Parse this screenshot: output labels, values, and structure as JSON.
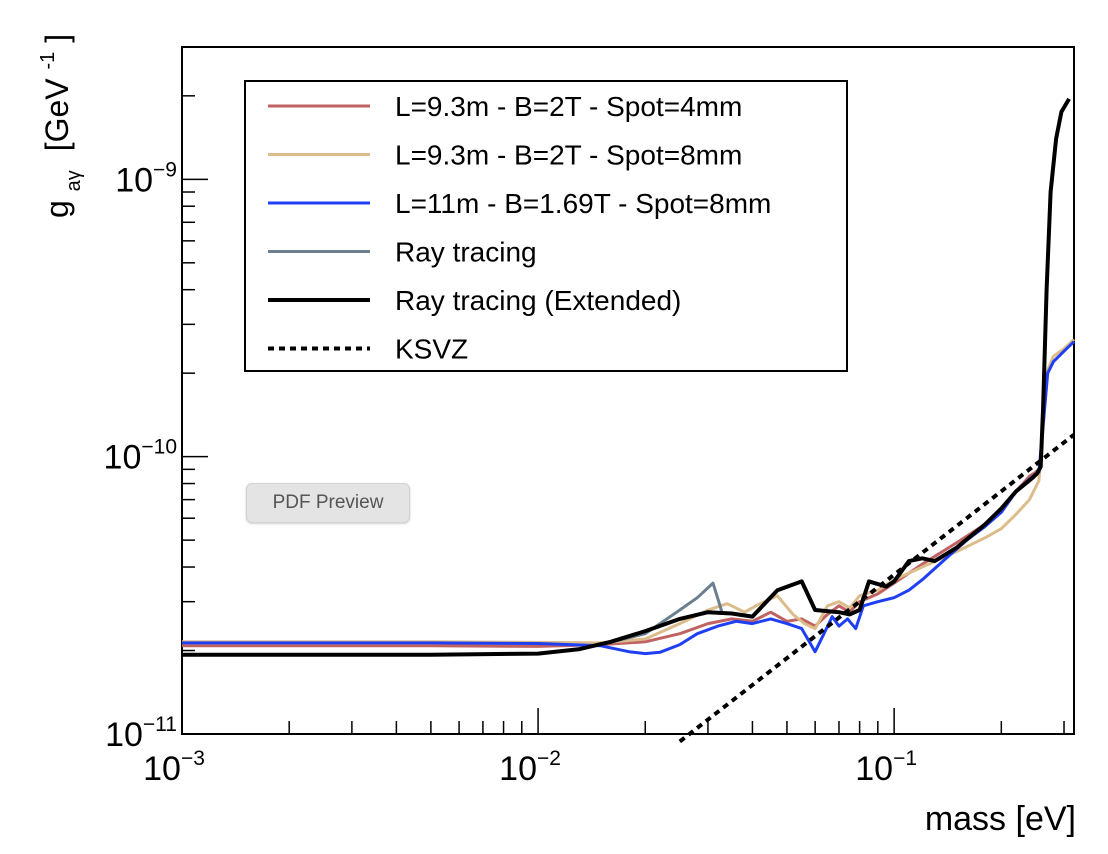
{
  "chart_data": {
    "type": "line",
    "xscale": "log",
    "yscale": "log",
    "xlabel": "mass [eV]",
    "ylabel": {
      "main": "g",
      "sub": "aγ",
      "unit_open": "[GeV",
      "unit_sup": "-1",
      "unit_close": "]"
    },
    "xlim": [
      0.001,
      0.32
    ],
    "ylim": [
      1e-11,
      3e-09
    ],
    "x_ticks": [
      {
        "value": 0.001,
        "base": "10",
        "exp": "−3"
      },
      {
        "value": 0.01,
        "base": "10",
        "exp": "−2"
      },
      {
        "value": 0.1,
        "base": "10",
        "exp": "−1"
      }
    ],
    "y_ticks": [
      {
        "value": 1e-11,
        "base": "10",
        "exp": "−11"
      },
      {
        "value": 1e-10,
        "base": "10",
        "exp": "−10"
      },
      {
        "value": 1e-09,
        "base": "10",
        "exp": "−9"
      }
    ],
    "legend_position": "top-left",
    "series": [
      {
        "name": "L=9.3m - B=2T - Spot=4mm",
        "color": "#c06262",
        "width": 3,
        "dash": "",
        "points": [
          [
            0.001,
            2.08e-11
          ],
          [
            0.005,
            2.08e-11
          ],
          [
            0.01,
            2.07e-11
          ],
          [
            0.015,
            2.1e-11
          ],
          [
            0.02,
            2.15e-11
          ],
          [
            0.025,
            2.3e-11
          ],
          [
            0.03,
            2.5e-11
          ],
          [
            0.035,
            2.6e-11
          ],
          [
            0.04,
            2.55e-11
          ],
          [
            0.045,
            2.75e-11
          ],
          [
            0.05,
            2.55e-11
          ],
          [
            0.055,
            2.6e-11
          ],
          [
            0.06,
            2.45e-11
          ],
          [
            0.065,
            2.7e-11
          ],
          [
            0.07,
            2.9e-11
          ],
          [
            0.075,
            2.75e-11
          ],
          [
            0.08,
            3e-11
          ],
          [
            0.09,
            3.2e-11
          ],
          [
            0.1,
            3.5e-11
          ],
          [
            0.12,
            4.1e-11
          ],
          [
            0.15,
            4.9e-11
          ],
          [
            0.18,
            5.7e-11
          ],
          [
            0.2,
            6.3e-11
          ],
          [
            0.22,
            7.5e-11
          ],
          [
            0.24,
            8.5e-11
          ],
          [
            0.25,
            8.8e-11
          ],
          [
            0.255,
            9e-11
          ]
        ]
      },
      {
        "name": "L=9.3m - B=2T - Spot=8mm",
        "color": "#dcbc8a",
        "width": 3,
        "dash": "",
        "points": [
          [
            0.001,
            2.15e-11
          ],
          [
            0.005,
            2.15e-11
          ],
          [
            0.01,
            2.14e-11
          ],
          [
            0.015,
            2.13e-11
          ],
          [
            0.02,
            2.2e-11
          ],
          [
            0.025,
            2.5e-11
          ],
          [
            0.03,
            2.8e-11
          ],
          [
            0.034,
            2.95e-11
          ],
          [
            0.038,
            2.75e-11
          ],
          [
            0.042,
            2.95e-11
          ],
          [
            0.047,
            3.15e-11
          ],
          [
            0.052,
            2.7e-11
          ],
          [
            0.056,
            2.5e-11
          ],
          [
            0.06,
            2.4e-11
          ],
          [
            0.065,
            2.9e-11
          ],
          [
            0.07,
            3e-11
          ],
          [
            0.075,
            2.85e-11
          ],
          [
            0.08,
            3.15e-11
          ],
          [
            0.09,
            3.3e-11
          ],
          [
            0.1,
            3.6e-11
          ],
          [
            0.12,
            4e-11
          ],
          [
            0.15,
            4.55e-11
          ],
          [
            0.18,
            5.1e-11
          ],
          [
            0.2,
            5.5e-11
          ],
          [
            0.22,
            6.2e-11
          ],
          [
            0.24,
            7e-11
          ],
          [
            0.255,
            8.2e-11
          ],
          [
            0.265,
            1.5e-10
          ],
          [
            0.27,
            2.05e-10
          ],
          [
            0.28,
            2.3e-10
          ],
          [
            0.3,
            2.45e-10
          ],
          [
            0.32,
            2.65e-10
          ]
        ]
      },
      {
        "name": "L=11m - B=1.69T - Spot=8mm",
        "color": "#1f3ff5",
        "width": 3,
        "dash": "",
        "points": [
          [
            0.001,
            2.13e-11
          ],
          [
            0.005,
            2.13e-11
          ],
          [
            0.01,
            2.12e-11
          ],
          [
            0.015,
            2.08e-11
          ],
          [
            0.018,
            1.98e-11
          ],
          [
            0.02,
            1.95e-11
          ],
          [
            0.022,
            1.97e-11
          ],
          [
            0.025,
            2.1e-11
          ],
          [
            0.028,
            2.3e-11
          ],
          [
            0.032,
            2.45e-11
          ],
          [
            0.036,
            2.55e-11
          ],
          [
            0.04,
            2.5e-11
          ],
          [
            0.045,
            2.6e-11
          ],
          [
            0.05,
            2.5e-11
          ],
          [
            0.055,
            2.4e-11
          ],
          [
            0.06,
            1.98e-11
          ],
          [
            0.063,
            2.25e-11
          ],
          [
            0.067,
            2.65e-11
          ],
          [
            0.07,
            2.45e-11
          ],
          [
            0.074,
            2.6e-11
          ],
          [
            0.078,
            2.4e-11
          ],
          [
            0.082,
            2.9e-11
          ],
          [
            0.09,
            3e-11
          ],
          [
            0.1,
            3.1e-11
          ],
          [
            0.11,
            3.3e-11
          ],
          [
            0.12,
            3.6e-11
          ],
          [
            0.14,
            4.3e-11
          ],
          [
            0.16,
            5e-11
          ],
          [
            0.18,
            5.6e-11
          ],
          [
            0.2,
            6.3e-11
          ],
          [
            0.22,
            7.5e-11
          ],
          [
            0.24,
            8.3e-11
          ],
          [
            0.255,
            8.8e-11
          ],
          [
            0.262,
            1.3e-10
          ],
          [
            0.27,
            2e-10
          ],
          [
            0.28,
            2.2e-10
          ],
          [
            0.3,
            2.4e-10
          ],
          [
            0.32,
            2.6e-10
          ]
        ]
      },
      {
        "name": "Ray tracing",
        "color": "#6b7f8f",
        "width": 3,
        "dash": "",
        "points": [
          [
            0.015,
            2.1e-11
          ],
          [
            0.02,
            2.3e-11
          ],
          [
            0.025,
            2.8e-11
          ],
          [
            0.028,
            3.1e-11
          ],
          [
            0.031,
            3.5e-11
          ],
          [
            0.033,
            2.7e-11
          ]
        ]
      },
      {
        "name": "Ray tracing (Extended)",
        "color": "#000000",
        "width": 4,
        "dash": "",
        "points": [
          [
            0.001,
            1.93e-11
          ],
          [
            0.005,
            1.93e-11
          ],
          [
            0.01,
            1.95e-11
          ],
          [
            0.013,
            2.02e-11
          ],
          [
            0.016,
            2.15e-11
          ],
          [
            0.02,
            2.35e-11
          ],
          [
            0.025,
            2.6e-11
          ],
          [
            0.03,
            2.75e-11
          ],
          [
            0.035,
            2.72e-11
          ],
          [
            0.04,
            2.65e-11
          ],
          [
            0.047,
            3.3e-11
          ],
          [
            0.055,
            3.55e-11
          ],
          [
            0.06,
            2.8e-11
          ],
          [
            0.07,
            2.75e-11
          ],
          [
            0.075,
            2.7e-11
          ],
          [
            0.08,
            2.8e-11
          ],
          [
            0.085,
            3.55e-11
          ],
          [
            0.095,
            3.4e-11
          ],
          [
            0.1,
            3.55e-11
          ],
          [
            0.11,
            4.2e-11
          ],
          [
            0.12,
            4.3e-11
          ],
          [
            0.13,
            4.2e-11
          ],
          [
            0.15,
            4.7e-11
          ],
          [
            0.18,
            5.7e-11
          ],
          [
            0.2,
            6.5e-11
          ],
          [
            0.22,
            7.5e-11
          ],
          [
            0.245,
            8.4e-11
          ],
          [
            0.252,
            8.7e-11
          ],
          [
            0.258,
            9.2e-11
          ],
          [
            0.262,
            1.5e-10
          ],
          [
            0.268,
            4e-10
          ],
          [
            0.275,
            9e-10
          ],
          [
            0.285,
            1.4e-09
          ],
          [
            0.295,
            1.75e-09
          ],
          [
            0.31,
            1.95e-09
          ]
        ]
      },
      {
        "name": "KSVZ",
        "color": "#000000",
        "width": 4,
        "dash": "6,5",
        "points": [
          [
            0.025,
            9.4e-12
          ],
          [
            0.32,
            1.2e-10
          ]
        ]
      }
    ]
  },
  "overlay": {
    "pdf_preview_label": "PDF Preview"
  }
}
